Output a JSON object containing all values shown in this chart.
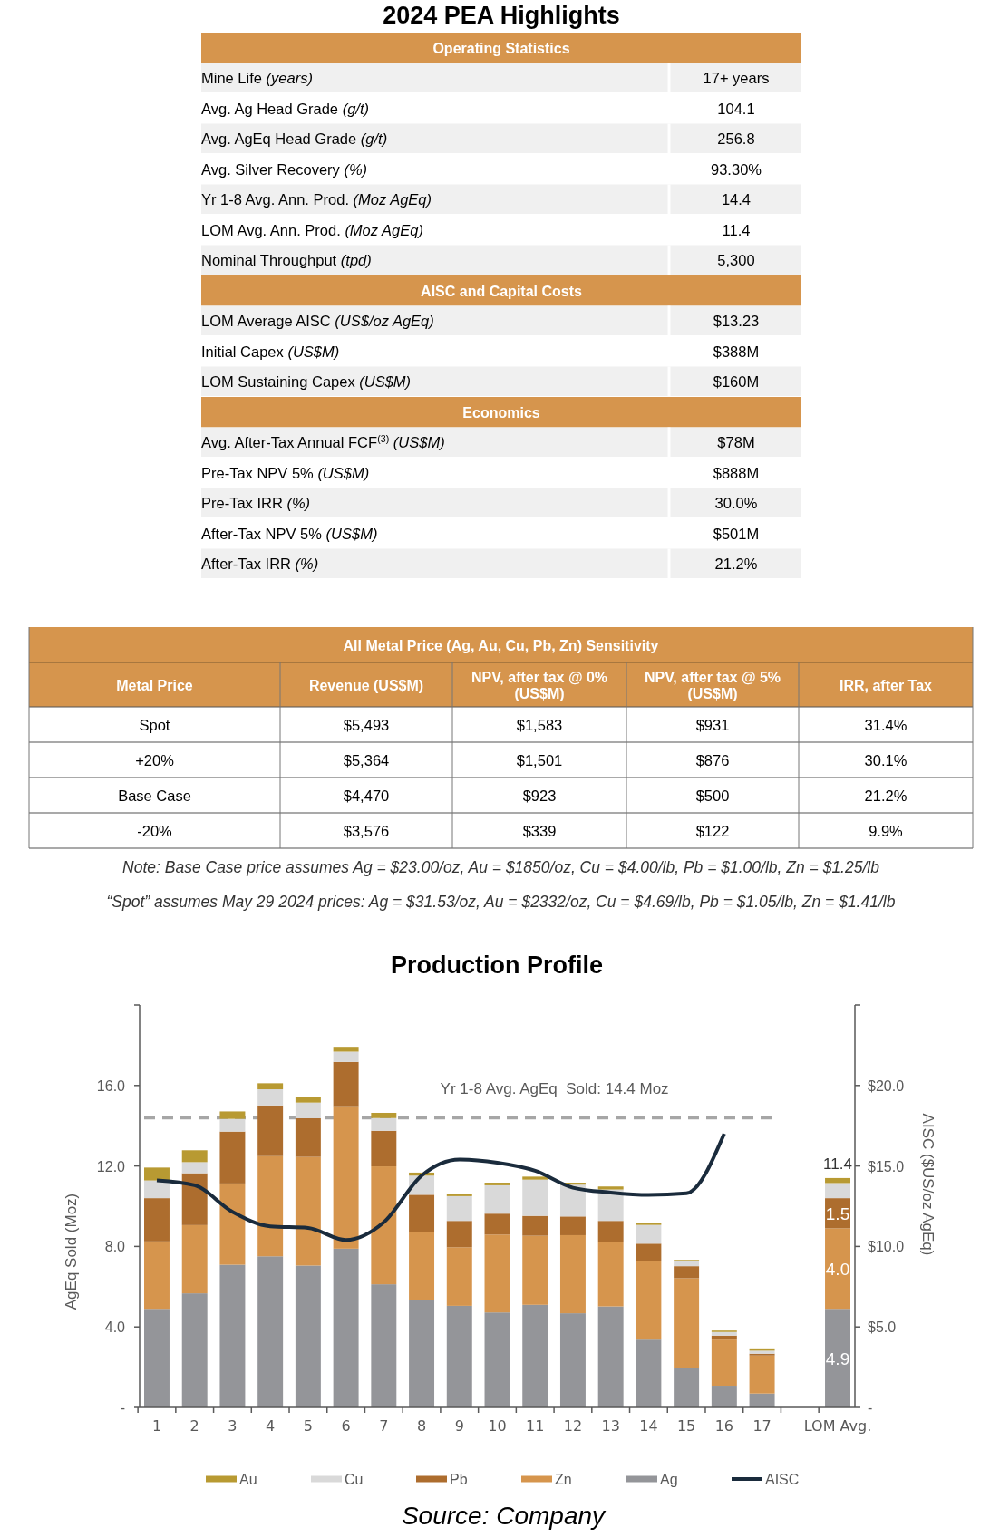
{
  "chart_data": [
    {
      "type": "other",
      "title": "2024 PEA Highlights",
      "subtitle": "Operating Statistics",
      "y_categories": [
        "Mine Life (years)",
        "Avg. Ag Head Grade (g/t)",
        "Avg. AgEq Head Grade (g/t)",
        "Avg. Silver Recovery (%)",
        "Yr 1-8 Avg. Ann. Prod. (Moz AgEq)",
        "LOM Avg. Ann. Prod. (Moz AgEq)",
        "Nominal Throughput (tpd)"
      ],
      "cell_labels": [
        [
          "17+ years"
        ],
        [
          "104.1"
        ],
        [
          "256.8"
        ],
        [
          "93.30%"
        ],
        [
          "14.4"
        ],
        [
          "11.4"
        ],
        [
          "5,300"
        ]
      ]
    },
    {
      "type": "other",
      "subtitle": "AISC and Capital Costs",
      "y_categories": [
        "LOM Average AISC (US$/oz AgEq)",
        "Initial Capex (US$M)",
        "LOM Sustaining Capex (US$M)"
      ],
      "cell_labels": [
        [
          "$13.23"
        ],
        [
          "$388M"
        ],
        [
          "$160M"
        ]
      ]
    },
    {
      "type": "other",
      "subtitle": "Economics",
      "y_categories": [
        "Avg. After-Tax Annual FCF$^{(3)}$ (US$M)",
        "Pre-Tax NPV 5% (US$M)",
        "Pre-Tax IRR (%)",
        "After-Tax NPV 5% (US$M)",
        "After-Tax IRR (%)"
      ],
      "cell_labels": [
        [
          "$78M"
        ],
        [
          "$888M"
        ],
        [
          "30.0%"
        ],
        [
          "$501M"
        ],
        [
          "21.2%"
        ]
      ]
    },
    {
      "type": "other",
      "title": "All Metal Price (Ag, Au, Cu, Pb, Zn) Sensitivity",
      "categories": [
        "Metal Price",
        "Revenue (US$M)",
        "NPV, after tax @ 0% (US$M)",
        "NPV, after tax @ 5% (US$M)",
        "IRR, after Tax"
      ],
      "cell_labels": [
        [
          "Spot",
          "$5,493",
          "$1,583",
          "$931",
          "31.4%"
        ],
        [
          "+20%",
          "$5,364",
          "$1,501",
          "$876",
          "30.1%"
        ],
        [
          "Base Case",
          "$4,470",
          "$923",
          "$500",
          "21.2%"
        ],
        [
          "-20%",
          "$3,576",
          "$339",
          "$122",
          "9.9%"
        ]
      ],
      "annotations": [
        "Note: Base Case price assumes Ag = $23.00/oz, Au = $1850/oz, Cu = $4.00/lb, Pb = $1.00/lb, Zn = $1.25/lb",
        "“Spot” assumes May 29 2024 prices:  Ag = $31.53/oz, Au = $2332/oz, Cu = $4.69/lb, Pb = $1.05/lb, Zn = $1.41/lb"
      ]
    },
    {
      "type": "bar",
      "stacked": true,
      "title": "Production Profile",
      "ylabel": "AgEq Sold (Moz)",
      "y2label": "AISC ($US/oz AgEq)",
      "categories": [
        "1",
        "2",
        "3",
        "4",
        "5",
        "6",
        "7",
        "8",
        "9",
        "10",
        "11",
        "12",
        "13",
        "14",
        "15",
        "16",
        "17",
        null,
        "LOM Avg."
      ],
      "ylim": [
        0,
        20
      ],
      "yticks": [
        {
          "value": 0,
          "label": "-"
        },
        {
          "value": 4,
          "label": "4.0"
        },
        {
          "value": 8,
          "label": "8.0"
        },
        {
          "value": 12,
          "label": "12.0"
        },
        {
          "value": 16,
          "label": "16.0"
        }
      ],
      "y2lim": [
        0,
        25
      ],
      "y2ticks": [
        {
          "value": 0,
          "label": "-"
        },
        {
          "value": 5,
          "label": "$5.0"
        },
        {
          "value": 10,
          "label": "$10.0"
        },
        {
          "value": 15,
          "label": "$15.0"
        },
        {
          "value": 20,
          "label": "$20.0"
        }
      ],
      "series": [
        {
          "name": "Ag",
          "color": "#949599",
          "values": [
            4.9,
            5.67,
            7.09,
            7.51,
            7.05,
            7.89,
            6.12,
            5.34,
            5.05,
            4.72,
            5.1,
            4.68,
            5.02,
            3.37,
            1.98,
            1.08,
            0.69,
            null,
            4.9
          ],
          "value_labels": [
            null,
            null,
            null,
            null,
            null,
            null,
            null,
            null,
            null,
            null,
            null,
            null,
            null,
            null,
            null,
            null,
            null,
            null,
            "4.9"
          ]
        },
        {
          "name": "Zn",
          "color": "#d6954d",
          "values": [
            3.35,
            3.39,
            4.04,
            4.98,
            5.4,
            7.08,
            5.86,
            3.39,
            2.91,
            3.87,
            3.43,
            3.88,
            3.2,
            3.89,
            4.44,
            2.29,
            1.89,
            null,
            4.0
          ],
          "value_labels": [
            null,
            null,
            null,
            null,
            null,
            null,
            null,
            null,
            null,
            null,
            null,
            null,
            null,
            null,
            null,
            null,
            null,
            null,
            "4.0"
          ]
        },
        {
          "name": "Pb",
          "color": "#ad6d2e",
          "values": [
            2.15,
            2.58,
            2.58,
            2.52,
            1.92,
            2.2,
            1.77,
            1.84,
            1.31,
            1.04,
            0.99,
            0.93,
            1.05,
            0.88,
            0.6,
            0.2,
            0.09,
            null,
            1.5
          ],
          "value_labels": [
            null,
            null,
            null,
            null,
            null,
            null,
            null,
            null,
            null,
            null,
            null,
            null,
            null,
            null,
            null,
            null,
            null,
            null,
            "1.5"
          ]
        },
        {
          "name": "Cu",
          "color": "#d9d9d9",
          "values": [
            0.88,
            0.55,
            0.63,
            0.8,
            0.78,
            0.51,
            0.63,
            0.95,
            1.23,
            1.41,
            1.8,
            1.58,
            1.56,
            0.93,
            0.24,
            0.18,
            0.15,
            null,
            0.75
          ]
        },
        {
          "name": "Au",
          "color": "#b89a32",
          "values": [
            0.64,
            0.59,
            0.37,
            0.3,
            0.3,
            0.24,
            0.26,
            0.15,
            0.1,
            0.13,
            0.15,
            0.1,
            0.15,
            0.11,
            0.07,
            0.07,
            0.07,
            null,
            0.25
          ]
        },
        {
          "name": "AISC",
          "type": "line",
          "axis": "y2",
          "color": "#1a2b3c",
          "values": [
            14.1,
            13.8,
            12.15,
            11.25,
            11.15,
            10.4,
            11.5,
            14.4,
            15.4,
            15.2,
            14.7,
            13.65,
            13.35,
            13.2,
            13.3,
            17.0,
            null,
            null,
            null
          ]
        }
      ],
      "totals": [
        null,
        null,
        null,
        null,
        null,
        null,
        null,
        null,
        null,
        null,
        null,
        null,
        null,
        null,
        null,
        null,
        null,
        null,
        "11.4"
      ],
      "ref_lines": [
        {
          "axis": "y",
          "value": 14.4,
          "label": "Yr 1-8 Avg. AgEq  Sold: 14.4 Moz",
          "color": "#a6a6a6",
          "line_style": "dashed"
        }
      ],
      "legend": "bottom",
      "annotations": [
        "Source: Company"
      ]
    }
  ]
}
